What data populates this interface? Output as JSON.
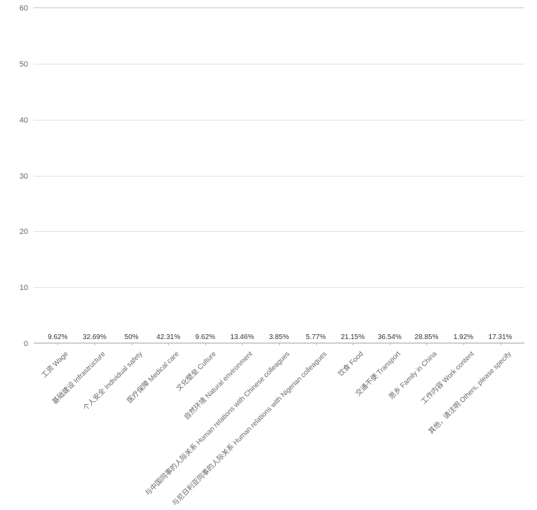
{
  "chart": {
    "type": "bar",
    "background_color": "#ffffff",
    "grid_color": "#e0e0e0",
    "axis_color": "#bbbbbb",
    "text_color": "#666666",
    "bar_color": "#1eb0f0",
    "bar_width_ratio": 0.58,
    "ylim": [
      0,
      60
    ],
    "ytick_step": 10,
    "yticks": [
      0,
      10,
      20,
      30,
      40,
      50,
      60
    ],
    "label_fontsize": 10,
    "datalabel_fontsize": 10,
    "tick_fontsize": 11,
    "categories": [
      "工资 Wage",
      "基础建设 Infrastructure",
      "个人安全 Individual safety",
      "医疗保障 Medical care",
      "文化壁垒 Culture",
      "自然环境 Natural environment",
      "与中国同事的人际关系 Human relations with Chinese colleagues",
      "与尼日利亚同事的人际关系 Human relations with Nigerian colleagues",
      "饮食 Food",
      "交通不便 Transport",
      "思乡 Family in China",
      "工作内容 Work content",
      "其他，请注明 Others, please specify"
    ],
    "values": [
      9.62,
      32.69,
      50,
      42.31,
      9.62,
      13.46,
      3.85,
      5.77,
      21.15,
      36.54,
      28.85,
      1.92,
      17.31
    ],
    "value_labels": [
      "9.62%",
      "32.69%",
      "50%",
      "42.31%",
      "9.62%",
      "13.46%",
      "3.85%",
      "5.77%",
      "21.15%",
      "36.54%",
      "28.85%",
      "1.92%",
      "17.31%"
    ]
  }
}
